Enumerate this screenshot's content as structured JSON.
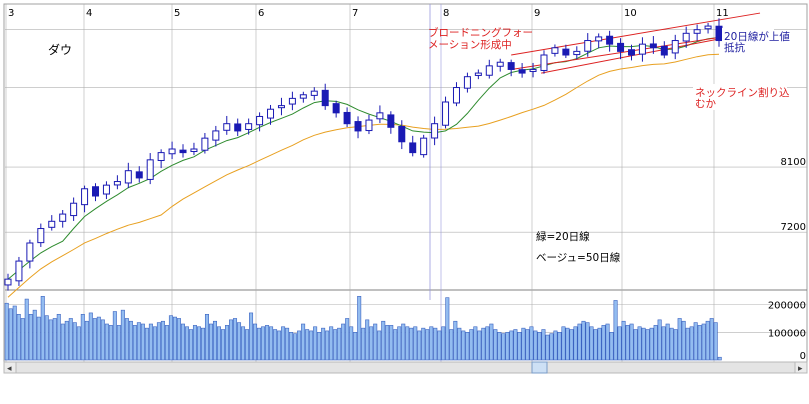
{
  "title": "ダウ",
  "colors": {
    "background": "#ffffff",
    "grid": "#b0b0b0",
    "candle_up": "#ffffff",
    "candle_down": "#1a1ab4",
    "candle_outline": "#1a1ab4",
    "ma20": "#2e8b2e",
    "ma50": "#e8a020",
    "volume_fill": "#93bcf0",
    "volume_stroke": "#3a62c0",
    "trendline": "#dd2222",
    "marker": "#9999dd",
    "annotation_text": "#dd2222",
    "scrollbar": "#d8d8d8"
  },
  "chart_data": [
    {
      "type": "candlestick",
      "title": "ダウ",
      "x_axis": {
        "ticks": [
          "3",
          "4",
          "5",
          "6",
          "7",
          "8",
          "9",
          "10",
          "11"
        ]
      },
      "y_axis": {
        "visible_tick_labels": [
          "8100",
          "7200"
        ],
        "range": [
          6400,
          10300
        ],
        "grid": true
      },
      "series": [
        {
          "name": "緑=20日線",
          "type": "moving-average",
          "color": "#2e8b2e"
        },
        {
          "name": "ベージュ=50日線",
          "type": "moving-average",
          "color": "#e8a020"
        }
      ],
      "ohlc_close_sequence": [
        6550,
        6800,
        7050,
        7250,
        7350,
        7450,
        7600,
        7800,
        7700,
        7850,
        7900,
        8050,
        7950,
        8200,
        8300,
        8350,
        8300,
        8350,
        8500,
        8600,
        8700,
        8600,
        8700,
        8800,
        8900,
        8950,
        9050,
        9100,
        9150,
        8950,
        8850,
        8700,
        8600,
        8750,
        8850,
        8650,
        8450,
        8300,
        8500,
        8700,
        9000,
        9200,
        9350,
        9400,
        9500,
        9550,
        9450,
        9400,
        9450,
        9650,
        9750,
        9650,
        9700,
        9850,
        9900,
        9800,
        9700,
        9650,
        9800,
        9750,
        9650,
        9850,
        9950,
        10000,
        10050,
        9850
      ],
      "annotations": [
        "ブロードニングフォー\nメーション形成中",
        "20日線が上値\n抵抗",
        "ネックライン割り込\nむか",
        "緑=20日線",
        "ベージュ=50日線"
      ]
    },
    {
      "type": "bar",
      "title": "volume",
      "y_axis": {
        "tick_labels": [
          "200000",
          "100000",
          "0"
        ],
        "range": [
          0,
          260000
        ]
      },
      "values": [
        205000,
        185000,
        195000,
        165000,
        150000,
        220000,
        165000,
        180000,
        155000,
        230000,
        160000,
        145000,
        150000,
        165000,
        130000,
        140000,
        150000,
        135000,
        120000,
        165000,
        140000,
        170000,
        150000,
        155000,
        145000,
        130000,
        125000,
        175000,
        125000,
        180000,
        150000,
        140000,
        125000,
        135000,
        130000,
        115000,
        130000,
        120000,
        135000,
        140000,
        125000,
        160000,
        155000,
        150000,
        130000,
        120000,
        110000,
        125000,
        120000,
        115000,
        165000,
        130000,
        140000,
        120000,
        110000,
        125000,
        145000,
        150000,
        135000,
        120000,
        110000,
        170000,
        130000,
        115000,
        120000,
        125000,
        120000,
        110000,
        105000,
        120000,
        115000,
        100000,
        95000,
        105000,
        130000,
        110000,
        105000,
        120000,
        100000,
        115000,
        105000,
        120000,
        110000,
        115000,
        130000,
        150000,
        120000,
        100000,
        230000,
        115000,
        145000,
        120000,
        130000,
        105000,
        140000,
        125000,
        125000,
        110000,
        120000,
        130000,
        120000,
        115000,
        120000,
        105000,
        115000,
        110000,
        120000,
        115000,
        105000,
        120000,
        225000,
        110000,
        140000,
        115000,
        105000,
        100000,
        110000,
        120000,
        105000,
        115000,
        120000,
        130000,
        110000,
        100000,
        95000,
        100000,
        105000,
        110000,
        100000,
        115000,
        110000,
        120000,
        105000,
        100000,
        110000,
        90000,
        95000,
        105000,
        100000,
        120000,
        115000,
        110000,
        120000,
        130000,
        140000,
        135000,
        120000,
        110000,
        115000,
        125000,
        130000,
        100000,
        215000,
        120000,
        140000,
        125000,
        130000,
        110000,
        120000,
        115000,
        110000,
        115000,
        125000,
        145000,
        120000,
        130000,
        115000,
        110000,
        150000,
        140000,
        115000,
        120000,
        135000,
        125000,
        130000,
        140000,
        150000,
        135000,
        10000
      ]
    }
  ],
  "scrollbar": {
    "left_arrow": "◂",
    "right_arrow": "▸"
  }
}
